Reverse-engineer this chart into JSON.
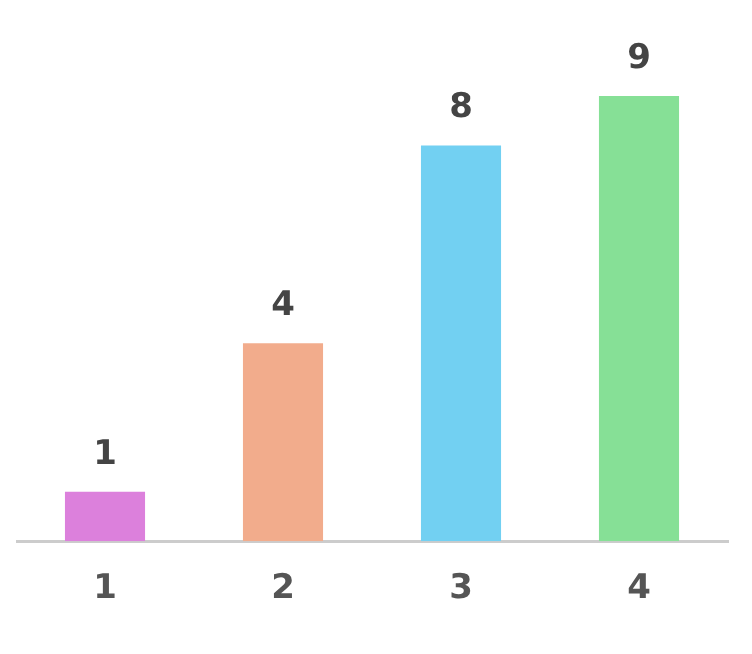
{
  "chart_data": {
    "type": "bar",
    "categories": [
      "1",
      "2",
      "3",
      "4"
    ],
    "values": [
      1,
      4,
      8,
      9
    ],
    "colors": [
      "#dc80dc",
      "#f2ac8c",
      "#72d0f2",
      "#86e096"
    ],
    "data_labels": true,
    "grid": false,
    "legend": false
  }
}
